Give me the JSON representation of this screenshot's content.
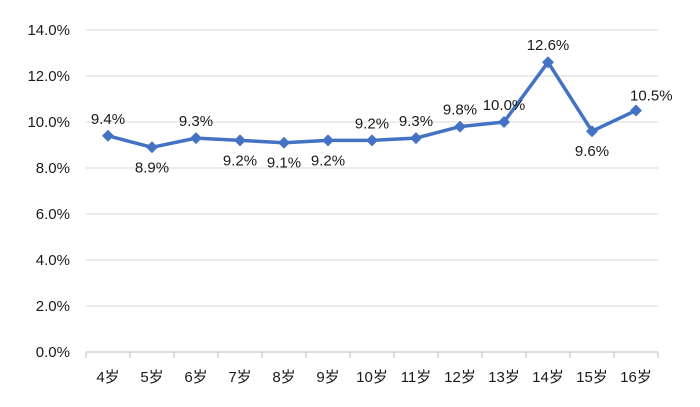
{
  "chart_data": {
    "type": "line",
    "title": "",
    "xlabel": "",
    "ylabel": "",
    "categories": [
      "4岁",
      "5岁",
      "6岁",
      "7岁",
      "8岁",
      "9岁",
      "10岁",
      "11岁",
      "12岁",
      "13岁",
      "14岁",
      "15岁",
      "16岁"
    ],
    "series": [
      {
        "values": [
          9.4,
          8.9,
          9.3,
          9.2,
          9.1,
          9.2,
          9.2,
          9.3,
          9.8,
          10.0,
          12.6,
          9.6,
          10.5
        ],
        "labels": [
          "9.4%",
          "8.9%",
          "9.3%",
          "9.2%",
          "9.1%",
          "9.2%",
          "9.2%",
          "9.3%",
          "9.8%",
          "10.0%",
          "12.6%",
          "9.6%",
          "10.5%"
        ],
        "color": "#4472C4"
      }
    ],
    "ylim": [
      0,
      14
    ],
    "yticks": [
      "0.0%",
      "2.0%",
      "4.0%",
      "6.0%",
      "8.0%",
      "10.0%",
      "12.0%",
      "14.0%"
    ],
    "grid": true,
    "legend": "none",
    "colors": {
      "line": "#4472C4",
      "grid": "#d9d9d9",
      "axis": "#bfbfbf"
    }
  }
}
